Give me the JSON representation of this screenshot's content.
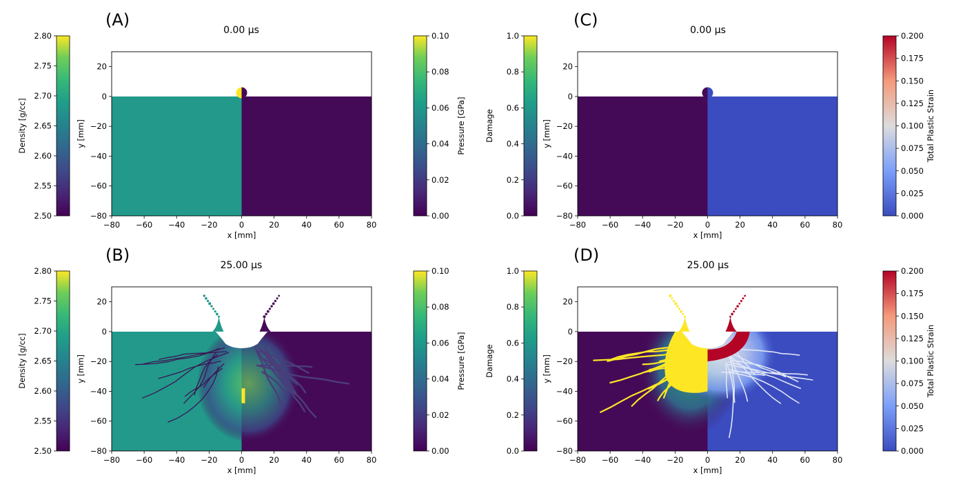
{
  "chart_data": [
    {
      "type": "heatmap",
      "panel_label": "(A)",
      "title": "0.00 μs",
      "xlabel": "x [mm]",
      "ylabel": "y [mm]",
      "xlim": [
        -80,
        80
      ],
      "ylim": [
        -80,
        30
      ],
      "x_ticks": [
        "−80",
        "−60",
        "−40",
        "−20",
        "0",
        "20",
        "40",
        "60",
        "80"
      ],
      "y_ticks": [
        "20",
        "0",
        "−20",
        "−40",
        "−60",
        "−80"
      ],
      "state": "initial",
      "left_field": {
        "colorbar_label": "Density [g/cc]",
        "colormap": "viridis",
        "range": [
          2.5,
          2.8
        ],
        "ticks": [
          "2.80",
          "2.75",
          "2.70",
          "2.65",
          "2.60",
          "2.55",
          "2.50"
        ],
        "fill_color": "#22998b",
        "projectile_color": "#fde725"
      },
      "right_field": {
        "colorbar_label": "Pressure [GPa]",
        "colormap": "viridis",
        "range": [
          0,
          0.1
        ],
        "ticks": [
          "0.10",
          "0.08",
          "0.06",
          "0.04",
          "0.02",
          "0.00"
        ],
        "fill_color": "#450a57",
        "projectile_color": "#450a57"
      }
    },
    {
      "type": "heatmap",
      "panel_label": "(B)",
      "title": "25.00 μs",
      "xlabel": "x [mm]",
      "ylabel": "y [mm]",
      "xlim": [
        -80,
        80
      ],
      "ylim": [
        -80,
        30
      ],
      "x_ticks": [
        "−80",
        "−60",
        "−40",
        "−20",
        "0",
        "20",
        "40",
        "60",
        "80"
      ],
      "y_ticks": [
        "20",
        "0",
        "−20",
        "−40",
        "−60",
        "−80"
      ],
      "state": "impact",
      "crater": {
        "center_y": -5,
        "radius_x": 12,
        "radius_y": 7
      },
      "left_field": {
        "colorbar_label": "Density [g/cc]",
        "colormap": "viridis",
        "range": [
          2.5,
          2.8
        ],
        "ticks": [
          "2.80",
          "2.75",
          "2.70",
          "2.65",
          "2.60",
          "2.55",
          "2.50"
        ],
        "fill_color": "#22998b",
        "feature_color": "#3a1553"
      },
      "right_field": {
        "colorbar_label": "Pressure [GPa]",
        "colormap": "viridis",
        "range": [
          0,
          0.1
        ],
        "ticks": [
          "0.10",
          "0.08",
          "0.06",
          "0.04",
          "0.02",
          "0.00"
        ],
        "fill_color": "#450a57",
        "feature_color": "#8fd744"
      }
    },
    {
      "type": "heatmap",
      "panel_label": "(C)",
      "title": "0.00 μs",
      "xlabel": "x [mm]",
      "ylabel": "y [mm]",
      "xlim": [
        -80,
        80
      ],
      "ylim": [
        -80,
        30
      ],
      "x_ticks": [
        "−80",
        "−60",
        "−40",
        "−20",
        "0",
        "20",
        "40",
        "60",
        "80"
      ],
      "y_ticks": [
        "20",
        "0",
        "−20",
        "−40",
        "−60",
        "−80"
      ],
      "state": "initial",
      "left_field": {
        "colorbar_label": "Damage",
        "colormap": "viridis",
        "range": [
          0,
          1
        ],
        "ticks": [
          "1.0",
          "0.8",
          "0.6",
          "0.4",
          "0.2",
          "0.0"
        ],
        "fill_color": "#450a57",
        "projectile_color": "#450a57"
      },
      "right_field": {
        "colorbar_label": "Total Plastic Strain",
        "colormap": "coolwarm",
        "range": [
          0,
          0.2
        ],
        "ticks": [
          "0.200",
          "0.175",
          "0.150",
          "0.125",
          "0.100",
          "0.075",
          "0.050",
          "0.025",
          "0.000"
        ],
        "fill_color": "#3b4cc0",
        "projectile_color": "#3b4cc0"
      }
    },
    {
      "type": "heatmap",
      "panel_label": "(D)",
      "title": "25.00 μs",
      "xlabel": "x [mm]",
      "ylabel": "y [mm]",
      "xlim": [
        -80,
        80
      ],
      "ylim": [
        -80,
        30
      ],
      "x_ticks": [
        "−80",
        "−60",
        "−40",
        "−20",
        "0",
        "20",
        "40",
        "60",
        "80"
      ],
      "y_ticks": [
        "20",
        "0",
        "−20",
        "−40",
        "−60",
        "−80"
      ],
      "state": "impact",
      "crater": {
        "center_y": -5,
        "radius_x": 12,
        "radius_y": 7
      },
      "left_field": {
        "colorbar_label": "Damage",
        "colormap": "viridis",
        "range": [
          0,
          1
        ],
        "ticks": [
          "1.0",
          "0.8",
          "0.6",
          "0.4",
          "0.2",
          "0.0"
        ],
        "fill_color": "#450a57",
        "feature_color": "#fde725"
      },
      "right_field": {
        "colorbar_label": "Total Plastic Strain",
        "colormap": "coolwarm",
        "range": [
          0,
          0.2
        ],
        "ticks": [
          "0.200",
          "0.175",
          "0.150",
          "0.125",
          "0.100",
          "0.075",
          "0.050",
          "0.025",
          "0.000"
        ],
        "fill_color": "#3b4cc0",
        "feature_color": "#b40426"
      }
    }
  ]
}
